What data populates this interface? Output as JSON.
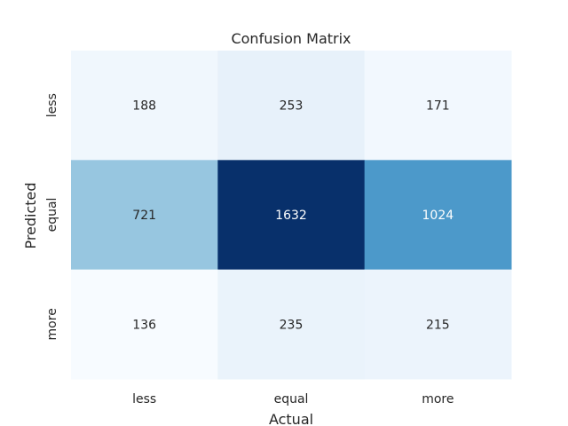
{
  "chart_data": {
    "type": "heatmap",
    "title": "Confusion Matrix",
    "xlabel": "Actual",
    "ylabel": "Predicted",
    "x_categories": [
      "less",
      "equal",
      "more"
    ],
    "y_categories": [
      "less",
      "equal",
      "more"
    ],
    "values": [
      [
        188,
        253,
        171
      ],
      [
        721,
        1632,
        1024
      ],
      [
        136,
        235,
        215
      ]
    ],
    "colormap": "Blues",
    "colorbar": false,
    "annotated": true
  }
}
